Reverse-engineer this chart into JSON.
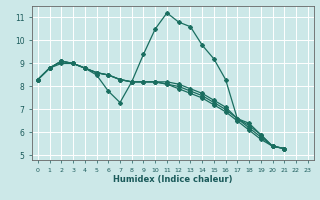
{
  "title": "",
  "xlabel": "Humidex (Indice chaleur)",
  "ylabel": "",
  "background_color": "#cce8e8",
  "grid_color": "#ffffff",
  "line_color": "#1a6e60",
  "xlim": [
    -0.5,
    23.5
  ],
  "ylim": [
    4.8,
    11.5
  ],
  "yticks": [
    5,
    6,
    7,
    8,
    9,
    10,
    11
  ],
  "xticks": [
    0,
    1,
    2,
    3,
    4,
    5,
    6,
    7,
    8,
    9,
    10,
    11,
    12,
    13,
    14,
    15,
    16,
    17,
    18,
    19,
    20,
    21,
    22,
    23
  ],
  "xtick_labels": [
    "0",
    "1",
    "2",
    "3",
    "4",
    "5",
    "6",
    "7",
    "8",
    "9",
    "10",
    "11",
    "12",
    "13",
    "14",
    "15",
    "16",
    "17",
    "18",
    "19",
    "20",
    "21",
    "22",
    "23"
  ],
  "series": [
    [
      8.3,
      8.8,
      9.1,
      9.0,
      8.8,
      8.5,
      7.8,
      7.3,
      8.2,
      9.4,
      10.5,
      11.2,
      10.8,
      10.6,
      9.8,
      9.2,
      8.3,
      6.6,
      6.4,
      5.9,
      5.4,
      5.3
    ],
    [
      8.3,
      8.8,
      9.1,
      9.0,
      8.8,
      8.6,
      8.5,
      8.3,
      8.2,
      8.2,
      8.2,
      8.2,
      8.1,
      7.9,
      7.7,
      7.4,
      7.1,
      6.6,
      6.3,
      5.9,
      5.4,
      5.3
    ],
    [
      8.3,
      8.8,
      9.1,
      9.0,
      8.8,
      8.6,
      8.5,
      8.3,
      8.2,
      8.2,
      8.2,
      8.1,
      8.0,
      7.8,
      7.6,
      7.3,
      7.0,
      6.6,
      6.2,
      5.8,
      5.4,
      5.3
    ],
    [
      8.3,
      8.8,
      9.0,
      9.0,
      8.8,
      8.6,
      8.5,
      8.3,
      8.2,
      8.2,
      8.2,
      8.1,
      7.9,
      7.7,
      7.5,
      7.2,
      6.9,
      6.5,
      6.1,
      5.7,
      5.4,
      5.3
    ]
  ],
  "marker": "D",
  "markersize": 2.0,
  "linewidth": 0.9
}
